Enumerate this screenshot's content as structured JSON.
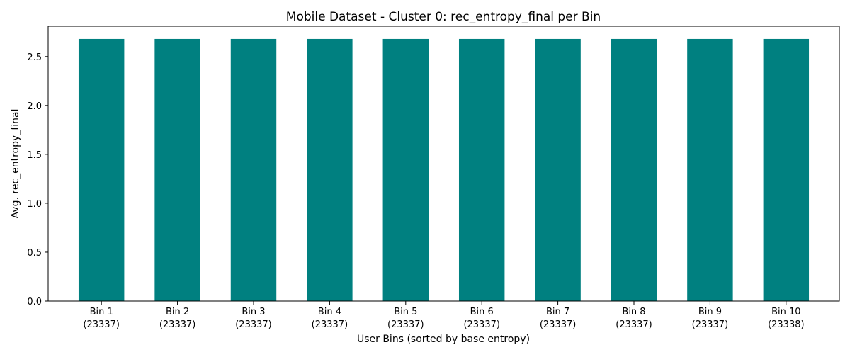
{
  "chart_data": {
    "type": "bar",
    "title": "Mobile Dataset - Cluster 0: rec_entropy_final per Bin",
    "xlabel": "User Bins (sorted by base entropy)",
    "ylabel": "Avg. rec_entropy_final",
    "categories": [
      "Bin 1",
      "Bin 2",
      "Bin 3",
      "Bin 4",
      "Bin 5",
      "Bin 6",
      "Bin 7",
      "Bin 8",
      "Bin 9",
      "Bin 10"
    ],
    "category_counts": [
      "(23337)",
      "(23337)",
      "(23337)",
      "(23337)",
      "(23337)",
      "(23337)",
      "(23337)",
      "(23337)",
      "(23337)",
      "(23338)"
    ],
    "values": [
      2.68,
      2.68,
      2.68,
      2.68,
      2.68,
      2.68,
      2.68,
      2.68,
      2.68,
      2.68
    ],
    "ylim": [
      0,
      2.81
    ],
    "yticks": [
      0.0,
      0.5,
      1.0,
      1.5,
      2.0,
      2.5
    ],
    "ytick_labels": [
      "0.0",
      "0.5",
      "1.0",
      "1.5",
      "2.0",
      "2.5"
    ],
    "bar_color": "#008080",
    "grid": false
  }
}
